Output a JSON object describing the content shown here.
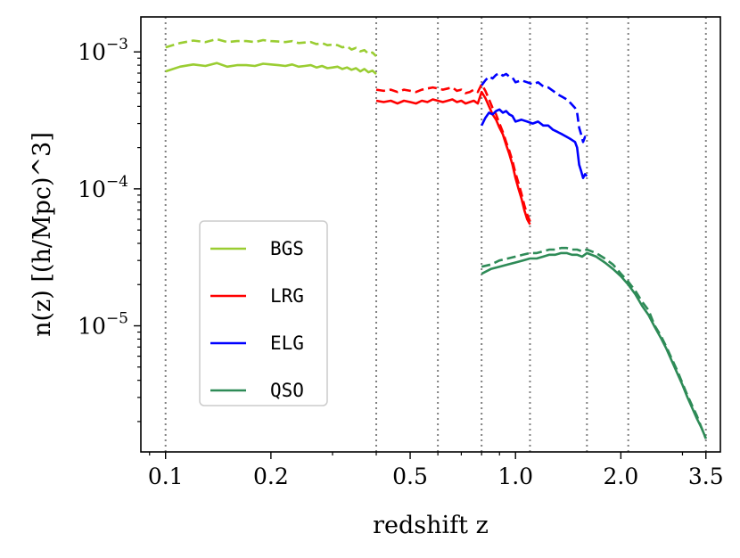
{
  "chart_data": {
    "type": "line",
    "xlabel": "redshift z",
    "ylabel": "n(z) [(h/Mpc)^3]",
    "xscale": "log",
    "yscale": "log",
    "xlim": [
      0.085,
      3.85
    ],
    "ylim": [
      1.2e-06,
      0.0018
    ],
    "x_ticks": [
      {
        "value": 0.1,
        "label": "0.1"
      },
      {
        "value": 0.2,
        "label": "0.2"
      },
      {
        "value": 0.5,
        "label": "0.5"
      },
      {
        "value": 1.0,
        "label": "1.0"
      },
      {
        "value": 2.0,
        "label": "2.0"
      },
      {
        "value": 3.5,
        "label": "3.5"
      }
    ],
    "y_ticks": [
      {
        "value": 0.001,
        "base": "10",
        "exp": "−3"
      },
      {
        "value": 0.0001,
        "base": "10",
        "exp": "−4"
      },
      {
        "value": 1e-05,
        "base": "10",
        "exp": "−5"
      }
    ],
    "vlines": [
      0.1,
      0.4,
      0.6,
      0.8,
      1.1,
      1.6,
      2.1,
      3.5
    ],
    "legend": {
      "position": "lower-left",
      "entries": [
        {
          "label": "BGS",
          "color": "#9acd32"
        },
        {
          "label": "LRG",
          "color": "#ff0000"
        },
        {
          "label": "ELG",
          "color": "#0000ff"
        },
        {
          "label": "QSO",
          "color": "#2e8b57"
        }
      ]
    },
    "series": [
      {
        "name": "BGS",
        "style": "solid",
        "color": "#9acd32",
        "x": [
          0.1,
          0.11,
          0.12,
          0.13,
          0.14,
          0.15,
          0.16,
          0.17,
          0.18,
          0.19,
          0.2,
          0.21,
          0.22,
          0.23,
          0.24,
          0.25,
          0.26,
          0.27,
          0.28,
          0.29,
          0.3,
          0.31,
          0.32,
          0.33,
          0.34,
          0.35,
          0.36,
          0.37,
          0.38,
          0.39,
          0.4
        ],
        "y": [
          0.00072,
          0.00078,
          0.00081,
          0.00079,
          0.00083,
          0.00078,
          0.0008,
          0.0008,
          0.00079,
          0.00082,
          0.00081,
          0.0008,
          0.00079,
          0.00081,
          0.00078,
          0.00079,
          0.0008,
          0.00077,
          0.00079,
          0.00076,
          0.00077,
          0.00078,
          0.00075,
          0.00077,
          0.00074,
          0.00076,
          0.00072,
          0.00075,
          0.00071,
          0.00073,
          0.00069
        ]
      },
      {
        "name": "BGS",
        "style": "dashed",
        "color": "#9acd32",
        "x": [
          0.1,
          0.11,
          0.12,
          0.13,
          0.14,
          0.15,
          0.16,
          0.17,
          0.18,
          0.19,
          0.2,
          0.21,
          0.22,
          0.23,
          0.24,
          0.25,
          0.26,
          0.27,
          0.28,
          0.29,
          0.3,
          0.31,
          0.32,
          0.33,
          0.34,
          0.35,
          0.36,
          0.37,
          0.38,
          0.39,
          0.4
        ],
        "y": [
          0.00108,
          0.00116,
          0.00121,
          0.00118,
          0.00124,
          0.00118,
          0.0012,
          0.0012,
          0.00118,
          0.00122,
          0.0012,
          0.00119,
          0.00118,
          0.0012,
          0.00116,
          0.00117,
          0.00118,
          0.00114,
          0.00116,
          0.00112,
          0.00113,
          0.00112,
          0.00108,
          0.0011,
          0.00104,
          0.00107,
          0.00101,
          0.00103,
          0.00097,
          0.00099,
          0.00093
        ]
      },
      {
        "name": "LRG",
        "style": "solid",
        "color": "#ff0000",
        "x": [
          0.4,
          0.42,
          0.44,
          0.46,
          0.48,
          0.5,
          0.52,
          0.54,
          0.56,
          0.58,
          0.6,
          0.62,
          0.64,
          0.66,
          0.68,
          0.7,
          0.72,
          0.74,
          0.76,
          0.78,
          0.8,
          0.82,
          0.84,
          0.86,
          0.88,
          0.9,
          0.92,
          0.94,
          0.96,
          0.98,
          1.0,
          1.02,
          1.04,
          1.06,
          1.08,
          1.1
        ],
        "y": [
          0.00044,
          0.00043,
          0.00044,
          0.00042,
          0.00044,
          0.00043,
          0.00042,
          0.00044,
          0.00043,
          0.00045,
          0.00044,
          0.00043,
          0.00044,
          0.00045,
          0.00043,
          0.00044,
          0.00042,
          0.00043,
          0.00044,
          0.00042,
          0.00051,
          0.00046,
          0.0004,
          0.00035,
          0.00032,
          0.00028,
          0.00025,
          0.00021,
          0.00018,
          0.00015,
          0.00012,
          0.0001,
          8.5e-05,
          7e-05,
          6e-05,
          5.5e-05
        ]
      },
      {
        "name": "LRG",
        "style": "dashed",
        "color": "#ff0000",
        "x": [
          0.4,
          0.42,
          0.44,
          0.46,
          0.48,
          0.5,
          0.52,
          0.54,
          0.56,
          0.58,
          0.6,
          0.62,
          0.64,
          0.66,
          0.68,
          0.7,
          0.72,
          0.74,
          0.76,
          0.78,
          0.8,
          0.82,
          0.84,
          0.86,
          0.88,
          0.9,
          0.92,
          0.94,
          0.96,
          0.98,
          1.0,
          1.02,
          1.04,
          1.06,
          1.08,
          1.1
        ],
        "y": [
          0.00053,
          0.00052,
          0.00053,
          0.00051,
          0.00053,
          0.00052,
          0.00051,
          0.00053,
          0.00054,
          0.00055,
          0.00054,
          0.00053,
          0.00054,
          0.00055,
          0.00052,
          0.00053,
          0.0005,
          0.00051,
          0.00053,
          0.00051,
          0.00058,
          0.00052,
          0.00045,
          0.00039,
          0.00035,
          0.0003,
          0.00026,
          0.00022,
          0.00019,
          0.00016,
          0.00013,
          0.00011,
          9.2e-05,
          7.6e-05,
          6.5e-05,
          5.8e-05
        ]
      },
      {
        "name": "ELG",
        "style": "solid",
        "color": "#0000ff",
        "x": [
          0.8,
          0.82,
          0.84,
          0.86,
          0.88,
          0.9,
          0.92,
          0.94,
          0.96,
          0.98,
          1.0,
          1.04,
          1.08,
          1.12,
          1.16,
          1.2,
          1.24,
          1.28,
          1.32,
          1.36,
          1.4,
          1.44,
          1.48,
          1.5,
          1.52,
          1.54,
          1.56,
          1.58,
          1.6
        ],
        "y": [
          0.00029,
          0.00033,
          0.00036,
          0.00035,
          0.00037,
          0.00038,
          0.00036,
          0.00037,
          0.00035,
          0.00034,
          0.00031,
          0.00032,
          0.00031,
          0.0003,
          0.00031,
          0.00029,
          0.00029,
          0.00027,
          0.00026,
          0.00025,
          0.00024,
          0.00023,
          0.00022,
          0.0002,
          0.00015,
          0.000135,
          0.00012,
          0.000128,
          0.000124
        ]
      },
      {
        "name": "ELG",
        "style": "dashed",
        "color": "#0000ff",
        "x": [
          0.8,
          0.82,
          0.84,
          0.86,
          0.88,
          0.9,
          0.92,
          0.94,
          0.96,
          0.98,
          1.0,
          1.04,
          1.08,
          1.12,
          1.16,
          1.2,
          1.24,
          1.28,
          1.32,
          1.36,
          1.4,
          1.44,
          1.48,
          1.5,
          1.52,
          1.54,
          1.56,
          1.58,
          1.6
        ],
        "y": [
          0.00057,
          0.00062,
          0.00066,
          0.00064,
          0.00068,
          0.0007,
          0.00067,
          0.00069,
          0.00066,
          0.00065,
          0.0006,
          0.00062,
          0.0006,
          0.00058,
          0.0006,
          0.00056,
          0.00055,
          0.00052,
          0.00049,
          0.00047,
          0.00045,
          0.00042,
          0.00039,
          0.00036,
          0.00028,
          0.00025,
          0.00022,
          0.00024,
          0.00023
        ]
      },
      {
        "name": "QSO",
        "style": "solid",
        "color": "#2e8b57",
        "x": [
          0.8,
          0.85,
          0.9,
          0.95,
          1.0,
          1.05,
          1.1,
          1.15,
          1.2,
          1.25,
          1.3,
          1.35,
          1.4,
          1.45,
          1.5,
          1.55,
          1.6,
          1.7,
          1.8,
          1.9,
          2.0,
          2.1,
          2.2,
          2.3,
          2.4,
          2.5,
          2.6,
          2.7,
          2.8,
          2.9,
          3.0,
          3.1,
          3.2,
          3.3,
          3.4,
          3.5
        ],
        "y": [
          2.4e-05,
          2.6e-05,
          2.7e-05,
          2.8e-05,
          2.9e-05,
          3e-05,
          3.1e-05,
          3.1e-05,
          3.2e-05,
          3.3e-05,
          3.3e-05,
          3.4e-05,
          3.4e-05,
          3.3e-05,
          3.3e-05,
          3.2e-05,
          3.4e-05,
          3.2e-05,
          2.9e-05,
          2.6e-05,
          2.3e-05,
          2e-05,
          1.7e-05,
          1.4e-05,
          1.2e-05,
          9.8e-06,
          8.2e-06,
          6.8e-06,
          5.5e-06,
          4.5e-06,
          3.7e-06,
          3e-06,
          2.5e-06,
          2.1e-06,
          1.8e-06,
          1.5e-06
        ]
      },
      {
        "name": "QSO",
        "style": "dashed",
        "color": "#2e8b57",
        "x": [
          0.8,
          0.85,
          0.9,
          0.95,
          1.0,
          1.05,
          1.1,
          1.15,
          1.2,
          1.25,
          1.3,
          1.35,
          1.4,
          1.45,
          1.5,
          1.55,
          1.6,
          1.7,
          1.8,
          1.9,
          2.0,
          2.1,
          2.2,
          2.3,
          2.4,
          2.5,
          2.6,
          2.7,
          2.8,
          2.9,
          3.0,
          3.1,
          3.2,
          3.3,
          3.4,
          3.5
        ],
        "y": [
          2.7e-05,
          2.8e-05,
          3e-05,
          3.1e-05,
          3.2e-05,
          3.3e-05,
          3.4e-05,
          3.4e-05,
          3.5e-05,
          3.6e-05,
          3.6e-05,
          3.7e-05,
          3.7e-05,
          3.6e-05,
          3.6e-05,
          3.5e-05,
          3.6e-05,
          3.4e-05,
          3.1e-05,
          2.8e-05,
          2.4e-05,
          2.1e-05,
          1.8e-05,
          1.5e-05,
          1.3e-05,
          1e-05,
          8.5e-06,
          7e-06,
          5.7e-06,
          4.7e-06,
          3.8e-06,
          3.1e-06,
          2.6e-06,
          2.2e-06,
          1.8e-06,
          1.5e-06
        ]
      }
    ]
  }
}
